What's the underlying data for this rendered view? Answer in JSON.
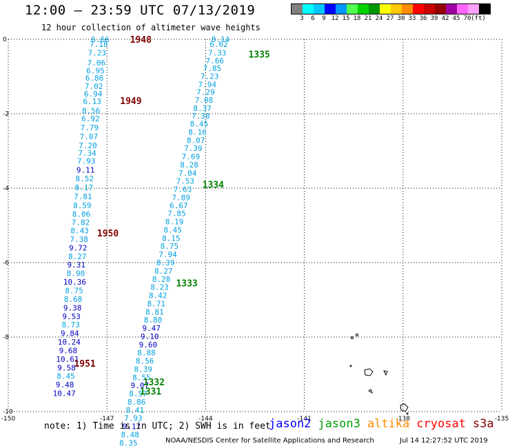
{
  "header": {
    "title": "12:00 – 23:59 UTC 07/13/2019",
    "subtitle": "12 hour collection of altimeter wave heights"
  },
  "legend": {
    "colors": [
      "#808080",
      "#00ffff",
      "#00c8ff",
      "#0000ff",
      "#0096ff",
      "#50ff50",
      "#00d200",
      "#009600",
      "#ffff00",
      "#ffc800",
      "#ff8c00",
      "#ff0000",
      "#c80000",
      "#960000",
      "#a000a0",
      "#ff64ff",
      "#ffa0ff",
      "#000000"
    ],
    "labels": [
      "3",
      "6",
      "9",
      "12",
      "15",
      "18",
      "21",
      "24",
      "27",
      "30",
      "33",
      "36",
      "39",
      "42",
      "45",
      "70",
      "(ft)"
    ]
  },
  "map": {
    "lat_labels": [
      "0",
      "-2",
      "-4",
      "-6",
      "-8",
      "-10"
    ],
    "lon_labels": [
      "-150",
      "-147",
      "-144",
      "-141",
      "-138",
      "-135"
    ],
    "colors": {
      "swh_light": "#00a0e0",
      "swh_dark": "#0000c0",
      "jason2_time": "#800000",
      "jason3_time": "#008000"
    }
  },
  "chart_data": {
    "type": "scatter",
    "title": "12:00 – 23:59 UTC 07/13/2019",
    "subtitle": "12 hour collection of altimeter wave heights",
    "x_range": [
      -150,
      -135
    ],
    "y_range": [
      -10,
      0
    ],
    "series": [
      {
        "name": "jason2",
        "time_labels": [
          {
            "text": "1948",
            "lon": -146.3,
            "lat": 0.0
          },
          {
            "text": "1949",
            "lon": -146.6,
            "lat": -1.65
          },
          {
            "text": "1950",
            "lon": -147.3,
            "lat": -5.2
          },
          {
            "text": "1951",
            "lon": -148.0,
            "lat": -8.7
          }
        ],
        "points": [
          {
            "v": "6.66",
            "lon": -147.2,
            "lat": 0.0,
            "dark": false
          },
          {
            "v": "7.18",
            "lon": -147.25,
            "lat": -0.13,
            "dark": false
          },
          {
            "v": "7.23",
            "lon": -147.3,
            "lat": -0.36,
            "dark": false
          },
          {
            "v": "7.06",
            "lon": -147.32,
            "lat": -0.63,
            "dark": false
          },
          {
            "v": "6.95",
            "lon": -147.35,
            "lat": -0.84,
            "dark": false
          },
          {
            "v": "6.86",
            "lon": -147.38,
            "lat": -1.04,
            "dark": false
          },
          {
            "v": "7.02",
            "lon": -147.4,
            "lat": -1.26,
            "dark": false
          },
          {
            "v": "6.94",
            "lon": -147.42,
            "lat": -1.46,
            "dark": false
          },
          {
            "v": "6.13",
            "lon": -147.45,
            "lat": -1.67,
            "dark": false
          },
          {
            "v": "8.56",
            "lon": -147.48,
            "lat": -1.92,
            "dark": false
          },
          {
            "v": "6.92",
            "lon": -147.5,
            "lat": -2.13,
            "dark": false
          },
          {
            "v": "7.79",
            "lon": -147.53,
            "lat": -2.37,
            "dark": false
          },
          {
            "v": "7.07",
            "lon": -147.55,
            "lat": -2.61,
            "dark": false
          },
          {
            "v": "7.20",
            "lon": -147.58,
            "lat": -2.85,
            "dark": false
          },
          {
            "v": "7.34",
            "lon": -147.6,
            "lat": -3.06,
            "dark": false
          },
          {
            "v": "7.93",
            "lon": -147.63,
            "lat": -3.27,
            "dark": false
          },
          {
            "v": "9.11",
            "lon": -147.65,
            "lat": -3.51,
            "dark": true
          },
          {
            "v": "8.52",
            "lon": -147.68,
            "lat": -3.74,
            "dark": false
          },
          {
            "v": "8.17",
            "lon": -147.7,
            "lat": -3.98,
            "dark": false
          },
          {
            "v": "7.81",
            "lon": -147.73,
            "lat": -4.22,
            "dark": false
          },
          {
            "v": "8.59",
            "lon": -147.75,
            "lat": -4.46,
            "dark": false
          },
          {
            "v": "8.06",
            "lon": -147.78,
            "lat": -4.69,
            "dark": false
          },
          {
            "v": "7.82",
            "lon": -147.8,
            "lat": -4.92,
            "dark": false
          },
          {
            "v": "8.43",
            "lon": -147.83,
            "lat": -5.14,
            "dark": false
          },
          {
            "v": "7.38",
            "lon": -147.85,
            "lat": -5.37,
            "dark": false
          },
          {
            "v": "9.72",
            "lon": -147.88,
            "lat": -5.6,
            "dark": true
          },
          {
            "v": "8.27",
            "lon": -147.9,
            "lat": -5.83,
            "dark": false
          },
          {
            "v": "9.31",
            "lon": -147.93,
            "lat": -6.06,
            "dark": true
          },
          {
            "v": "8.90",
            "lon": -147.95,
            "lat": -6.29,
            "dark": false
          },
          {
            "v": "10.36",
            "lon": -147.98,
            "lat": -6.52,
            "dark": true
          },
          {
            "v": "8.75",
            "lon": -148.0,
            "lat": -6.75,
            "dark": false
          },
          {
            "v": "8.68",
            "lon": -148.03,
            "lat": -6.98,
            "dark": false
          },
          {
            "v": "9.38",
            "lon": -148.05,
            "lat": -7.21,
            "dark": true
          },
          {
            "v": "9.53",
            "lon": -148.08,
            "lat": -7.44,
            "dark": true
          },
          {
            "v": "8.73",
            "lon": -148.1,
            "lat": -7.67,
            "dark": false
          },
          {
            "v": "9.84",
            "lon": -148.13,
            "lat": -7.9,
            "dark": true
          },
          {
            "v": "10.24",
            "lon": -148.15,
            "lat": -8.13,
            "dark": true
          },
          {
            "v": "9.68",
            "lon": -148.18,
            "lat": -8.36,
            "dark": true
          },
          {
            "v": "10.61",
            "lon": -148.2,
            "lat": -8.59,
            "dark": true
          },
          {
            "v": "9.58",
            "lon": -148.23,
            "lat": -8.82,
            "dark": true
          },
          {
            "v": "8.45",
            "lon": -148.25,
            "lat": -9.05,
            "dark": false
          },
          {
            "v": "9.48",
            "lon": -148.28,
            "lat": -9.28,
            "dark": true
          },
          {
            "v": "10.47",
            "lon": -148.3,
            "lat": -9.51,
            "dark": true
          }
        ]
      },
      {
        "name": "jason3",
        "time_labels": [
          {
            "text": "1335",
            "lon": -142.7,
            "lat": -0.4
          },
          {
            "text": "1334",
            "lon": -144.1,
            "lat": -3.9
          },
          {
            "text": "1333",
            "lon": -144.9,
            "lat": -6.55
          },
          {
            "text": "1332",
            "lon": -145.9,
            "lat": -9.2
          },
          {
            "text": "1331",
            "lon": -146.0,
            "lat": -9.45
          }
        ],
        "points": [
          {
            "v": "8.14",
            "lon": -143.55,
            "lat": 0.0,
            "dark": false
          },
          {
            "v": "6.62",
            "lon": -143.6,
            "lat": -0.13,
            "dark": false
          },
          {
            "v": "7.33",
            "lon": -143.65,
            "lat": -0.36,
            "dark": false
          },
          {
            "v": "7.66",
            "lon": -143.72,
            "lat": -0.57,
            "dark": false
          },
          {
            "v": "7.85",
            "lon": -143.8,
            "lat": -0.78,
            "dark": false
          },
          {
            "v": "7.23",
            "lon": -143.88,
            "lat": -0.99,
            "dark": false
          },
          {
            "v": "7.94",
            "lon": -143.95,
            "lat": -1.21,
            "dark": false
          },
          {
            "v": "7.29",
            "lon": -144.0,
            "lat": -1.42,
            "dark": false
          },
          {
            "v": "7.08",
            "lon": -144.05,
            "lat": -1.63,
            "dark": false
          },
          {
            "v": "8.37",
            "lon": -144.1,
            "lat": -1.85,
            "dark": false
          },
          {
            "v": "7.38",
            "lon": -144.15,
            "lat": -2.06,
            "dark": false
          },
          {
            "v": "8.45",
            "lon": -144.2,
            "lat": -2.27,
            "dark": false
          },
          {
            "v": "8.16",
            "lon": -144.25,
            "lat": -2.49,
            "dark": false
          },
          {
            "v": "8.07",
            "lon": -144.3,
            "lat": -2.71,
            "dark": false
          },
          {
            "v": "7.39",
            "lon": -144.38,
            "lat": -2.93,
            "dark": false
          },
          {
            "v": "7.69",
            "lon": -144.45,
            "lat": -3.15,
            "dark": false
          },
          {
            "v": "8.28",
            "lon": -144.5,
            "lat": -3.37,
            "dark": false
          },
          {
            "v": "7.04",
            "lon": -144.55,
            "lat": -3.59,
            "dark": false
          },
          {
            "v": "7.53",
            "lon": -144.62,
            "lat": -3.81,
            "dark": false
          },
          {
            "v": "7.63",
            "lon": -144.7,
            "lat": -4.03,
            "dark": false
          },
          {
            "v": "7.89",
            "lon": -144.75,
            "lat": -4.25,
            "dark": false
          },
          {
            "v": "6.67",
            "lon": -144.82,
            "lat": -4.46,
            "dark": false
          },
          {
            "v": "7.85",
            "lon": -144.88,
            "lat": -4.68,
            "dark": false
          },
          {
            "v": "8.19",
            "lon": -144.95,
            "lat": -4.9,
            "dark": false
          },
          {
            "v": "8.45",
            "lon": -145.0,
            "lat": -5.12,
            "dark": false
          },
          {
            "v": "8.15",
            "lon": -145.05,
            "lat": -5.34,
            "dark": false
          },
          {
            "v": "8.75",
            "lon": -145.1,
            "lat": -5.56,
            "dark": false
          },
          {
            "v": "7.94",
            "lon": -145.15,
            "lat": -5.78,
            "dark": false
          },
          {
            "v": "8.39",
            "lon": -145.22,
            "lat": -6.0,
            "dark": false
          },
          {
            "v": "8.27",
            "lon": -145.28,
            "lat": -6.22,
            "dark": false
          },
          {
            "v": "8.28",
            "lon": -145.35,
            "lat": -6.44,
            "dark": false
          },
          {
            "v": "8.23",
            "lon": -145.4,
            "lat": -6.66,
            "dark": false
          },
          {
            "v": "8.42",
            "lon": -145.45,
            "lat": -6.88,
            "dark": false
          },
          {
            "v": "8.71",
            "lon": -145.5,
            "lat": -7.1,
            "dark": false
          },
          {
            "v": "8.81",
            "lon": -145.55,
            "lat": -7.32,
            "dark": false
          },
          {
            "v": "8.80",
            "lon": -145.6,
            "lat": -7.54,
            "dark": false
          },
          {
            "v": "9.47",
            "lon": -145.65,
            "lat": -7.76,
            "dark": true
          },
          {
            "v": "9.10",
            "lon": -145.7,
            "lat": -7.98,
            "dark": true
          },
          {
            "v": "9.60",
            "lon": -145.75,
            "lat": -8.2,
            "dark": true
          },
          {
            "v": "8.88",
            "lon": -145.8,
            "lat": -8.42,
            "dark": false
          },
          {
            "v": "8.56",
            "lon": -145.85,
            "lat": -8.64,
            "dark": false
          },
          {
            "v": "8.39",
            "lon": -145.9,
            "lat": -8.86,
            "dark": false
          },
          {
            "v": "8.55",
            "lon": -145.95,
            "lat": -9.08,
            "dark": false
          },
          {
            "v": "9.07",
            "lon": -146.0,
            "lat": -9.3,
            "dark": true
          },
          {
            "v": "8.57",
            "lon": -146.05,
            "lat": -9.52,
            "dark": false
          },
          {
            "v": "8.86",
            "lon": -146.1,
            "lat": -9.74,
            "dark": false
          },
          {
            "v": "8.41",
            "lon": -146.15,
            "lat": -9.96,
            "dark": false
          },
          {
            "v": "7.93",
            "lon": -146.2,
            "lat": -10.18,
            "dark": false
          },
          {
            "v": "9.17",
            "lon": -146.25,
            "lat": -10.4,
            "dark": true
          },
          {
            "v": "8.48",
            "lon": -146.3,
            "lat": -10.62,
            "dark": false
          },
          {
            "v": "8.35",
            "lon": -146.35,
            "lat": -10.84,
            "dark": false
          }
        ]
      }
    ]
  },
  "footer": {
    "note": "note: 1) Time is in UTC; 2) SWH is in feet",
    "satellites": [
      {
        "name": "jason2",
        "color": "#0000ff"
      },
      {
        "name": "jason3",
        "color": "#00a000"
      },
      {
        "name": "altika",
        "color": "#ff8c00"
      },
      {
        "name": "cryosat",
        "color": "#ff0000"
      },
      {
        "name": "s3a",
        "color": "#800000"
      }
    ],
    "credit": "NOAA/NESDIS Center for Satellite Applications and Research",
    "timestamp": "Jul 14 12:27:52 UTC 2019"
  }
}
